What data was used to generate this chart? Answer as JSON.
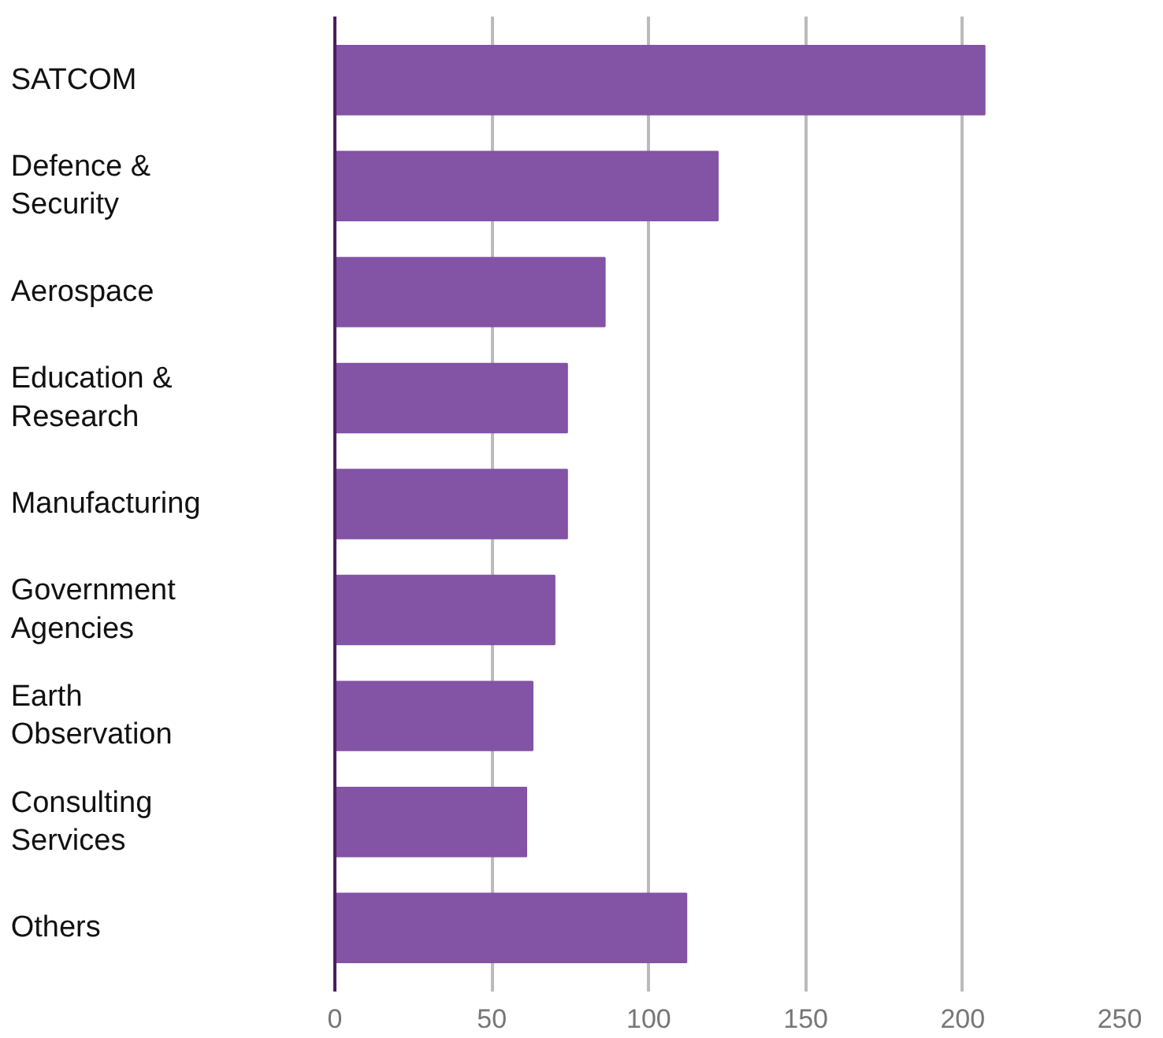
{
  "chart_data": {
    "type": "bar",
    "orientation": "horizontal",
    "categories": [
      "SATCOM",
      "Defence & Security",
      "Aerospace",
      "Education & Research",
      "Manufacturing",
      "Government Agencies",
      "Earth Observation",
      "Consulting Services",
      "Others"
    ],
    "values": [
      207,
      122,
      86,
      74,
      74,
      70,
      63,
      61,
      112
    ],
    "color": "#8353a6",
    "xlim": [
      0,
      250
    ],
    "xticks": [
      0,
      50,
      100,
      150,
      200,
      250
    ],
    "grid": "x"
  }
}
